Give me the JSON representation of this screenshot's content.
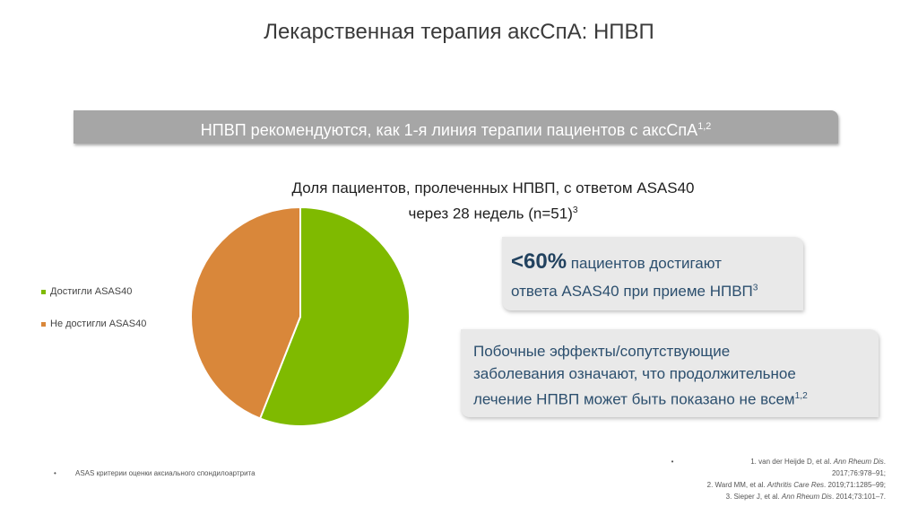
{
  "slide": {
    "title": "Лекарственная терапия аксСпА: НПВП",
    "banner": {
      "text": "НПВП рекомендуются, как 1-я линия терапии пациентов с аксСпА",
      "sup": "1,2"
    },
    "chart_title": {
      "line1": "Доля пациентов, пролеченных НПВП, с ответом ASAS40",
      "line2": "через 28 недель (n=51)",
      "sup": "3"
    },
    "callout1": {
      "big": "<60%",
      "line1_rest": " пациентов достигают",
      "line2": "ответа ASAS40 при приеме НПВП",
      "sup": "3"
    },
    "callout2": {
      "line1": "Побочные эффекты/сопутствующие",
      "line2": "заболевания означают, что продолжительное",
      "line3": "лечение НПВП может быть показано не всем",
      "sup": "1,2"
    },
    "footnote": {
      "bullet": "•",
      "text": "ASAS критерии оценки аксиального спондилоартрита"
    },
    "references": {
      "bullet": "•",
      "r1a": "1. van der Heijde D, et al. ",
      "r1i": "Ann Rheum Dis",
      "r1b": ".",
      "r1c": "2017;76:978–91;",
      "r2a": "2. Ward MM, et al. ",
      "r2i": "Arthritis Care Res",
      "r2b": ". 2019;71:1285–99;",
      "r3a": "3. Sieper J, et al. ",
      "r3i": "Ann Rheum Dis",
      "r3b": ". 2014;73:101–7."
    }
  },
  "chart_data": {
    "type": "pie",
    "categories": [
      "Достигли ASAS40",
      "Не достигли ASAS40"
    ],
    "values": [
      56,
      44
    ],
    "colors": [
      "#7fba00",
      "#d9873a"
    ],
    "legend_position": "left"
  }
}
